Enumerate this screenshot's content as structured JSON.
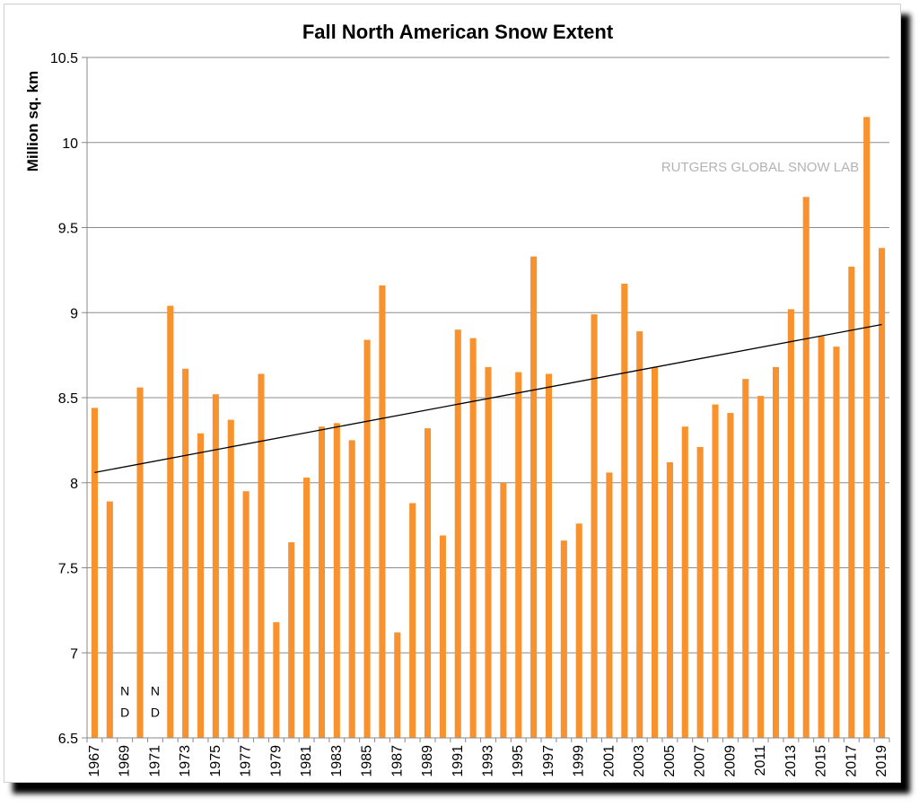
{
  "chart_data": {
    "type": "bar",
    "title": "Fall North American Snow Extent",
    "ylabel": "Million sq. km",
    "xlabel": "",
    "ylim": [
      6.5,
      10.5
    ],
    "yticks": [
      "6.5",
      "7",
      "7.5",
      "8",
      "8.5",
      "9",
      "9.5",
      "10",
      "10.5"
    ],
    "grid": true,
    "bar_color": "#F7922E",
    "trend_color": "#000000",
    "watermark": "RUTGERS GLOBAL SNOW LAB",
    "no_data_label": [
      "N",
      "D"
    ],
    "no_data_years": [
      "1969",
      "1971"
    ],
    "x_tick_labels": [
      "1967",
      "1969",
      "1971",
      "1973",
      "1975",
      "1977",
      "1979",
      "1981",
      "1983",
      "1985",
      "1987",
      "1989",
      "1991",
      "1993",
      "1995",
      "1997",
      "1999",
      "2001",
      "2003",
      "2005",
      "2007",
      "2009",
      "2011",
      "2013",
      "2015",
      "2017",
      "2019"
    ],
    "categories": [
      "1967",
      "1968",
      "1969",
      "1970",
      "1971",
      "1972",
      "1973",
      "1974",
      "1975",
      "1976",
      "1977",
      "1978",
      "1979",
      "1980",
      "1981",
      "1982",
      "1983",
      "1984",
      "1985",
      "1986",
      "1987",
      "1988",
      "1989",
      "1990",
      "1991",
      "1992",
      "1993",
      "1994",
      "1995",
      "1996",
      "1997",
      "1998",
      "1999",
      "2000",
      "2001",
      "2002",
      "2003",
      "2004",
      "2005",
      "2006",
      "2007",
      "2008",
      "2009",
      "2010",
      "2011",
      "2012",
      "2013",
      "2014",
      "2015",
      "2016",
      "2017",
      "2018",
      "2019"
    ],
    "values": [
      8.44,
      7.89,
      null,
      8.56,
      null,
      9.04,
      8.67,
      8.29,
      8.52,
      8.37,
      7.95,
      8.64,
      7.18,
      7.65,
      8.03,
      8.33,
      8.35,
      8.25,
      8.84,
      9.16,
      7.12,
      7.88,
      8.32,
      7.69,
      8.9,
      8.85,
      8.68,
      8.0,
      8.65,
      9.33,
      8.64,
      7.66,
      7.76,
      8.99,
      8.06,
      9.17,
      8.89,
      8.68,
      8.12,
      8.33,
      8.21,
      8.46,
      8.41,
      8.61,
      8.51,
      8.68,
      9.02,
      9.68,
      8.86,
      8.8,
      9.27,
      10.15,
      9.38
    ],
    "trend": {
      "x_start": "1967",
      "y_start": 8.06,
      "x_end": "2019",
      "y_end": 8.93
    }
  }
}
